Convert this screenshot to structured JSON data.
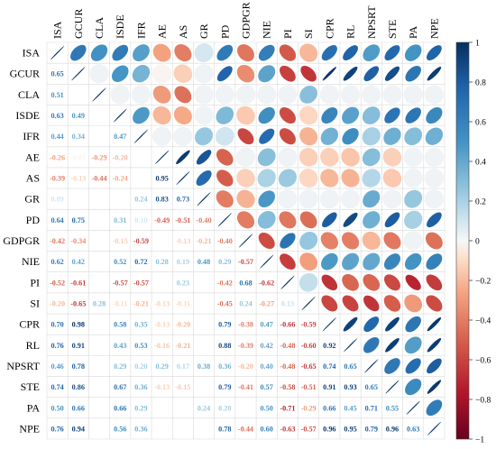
{
  "chart_data": {
    "type": "heatmap",
    "title": "",
    "variables": [
      "ISA",
      "GCUR",
      "CLA",
      "ISDE",
      "IFR",
      "AE",
      "AS",
      "GR",
      "PD",
      "GDPGR",
      "NIE",
      "PI",
      "SI",
      "CPR",
      "RL",
      "NPSRT",
      "STE",
      "PA",
      "NPE"
    ],
    "lower_values": [
      [],
      [
        0.65
      ],
      [
        0.51,
        0.02
      ],
      [
        0.63,
        0.49,
        0.02
      ],
      [
        0.44,
        0.34,
        0.02,
        0.47
      ],
      [
        -0.26,
        -0.01,
        -0.29,
        -0.2,
        0.02
      ],
      [
        -0.39,
        -0.13,
        -0.44,
        -0.24,
        0.02,
        0.95
      ],
      [
        0.09,
        0.02,
        0.02,
        0.02,
        0.24,
        0.83,
        0.73
      ],
      [
        0.64,
        0.75,
        0.02,
        0.31,
        0.1,
        -0.49,
        -0.51,
        -0.4
      ],
      [
        -0.42,
        -0.34,
        0.02,
        -0.15,
        -0.59,
        0.02,
        -0.13,
        -0.21,
        -0.4
      ],
      [
        0.62,
        0.42,
        0.02,
        0.52,
        0.72,
        0.28,
        0.19,
        0.48,
        0.29,
        -0.57
      ],
      [
        -0.52,
        -0.61,
        0.02,
        -0.57,
        -0.57,
        0.02,
        0.23,
        0.02,
        -0.42,
        0.68,
        -0.62
      ],
      [
        -0.2,
        -0.65,
        0.28,
        -0.11,
        -0.21,
        -0.13,
        -0.11,
        0.02,
        -0.45,
        0.24,
        -0.27,
        0.13
      ],
      [
        0.7,
        0.98,
        0.02,
        0.58,
        0.35,
        -0.13,
        -0.2,
        0.02,
        0.79,
        -0.38,
        0.47,
        -0.66,
        -0.59
      ],
      [
        0.76,
        0.91,
        0.02,
        0.43,
        0.53,
        -0.16,
        -0.21,
        0.02,
        0.88,
        -0.39,
        0.42,
        -0.48,
        -0.6,
        0.92
      ],
      [
        0.46,
        0.78,
        0.02,
        0.29,
        0.2,
        0.29,
        0.17,
        0.38,
        0.36,
        -0.2,
        0.4,
        -0.48,
        -0.65,
        0.74,
        0.65
      ],
      [
        0.74,
        0.86,
        0.02,
        0.67,
        0.36,
        -0.13,
        -0.15,
        0.02,
        0.79,
        -0.41,
        0.57,
        -0.58,
        -0.51,
        0.91,
        0.93,
        0.65
      ],
      [
        0.5,
        0.66,
        0.02,
        0.66,
        0.29,
        0.02,
        0.02,
        0.24,
        0.2,
        0.02,
        0.5,
        -0.71,
        -0.29,
        0.66,
        0.45,
        0.71,
        0.55
      ],
      [
        0.76,
        0.94,
        0.02,
        0.56,
        0.36,
        0.02,
        0.02,
        0.02,
        0.78,
        -0.44,
        0.6,
        -0.63,
        -0.57,
        0.96,
        0.95,
        0.79,
        0.96,
        0.63
      ]
    ],
    "visible_lower_labels": [
      [],
      [
        "0.65"
      ],
      [
        "0.51",
        "",
        "",
        "",
        "",
        "",
        "",
        "",
        "",
        "",
        "",
        "",
        "",
        "",
        "",
        "",
        "",
        "",
        ""
      ],
      [
        "0.63",
        "0.49"
      ],
      [
        "0.44",
        "0.34",
        "",
        "0.47"
      ],
      [
        "-0.26",
        "-0.01",
        "-0.29",
        "-0.20"
      ],
      [
        "-0.39",
        "-0.13",
        "-0.44",
        "-0.24",
        "",
        "0.95"
      ],
      [
        "0.09",
        "",
        "",
        "",
        "0.24",
        "0.83",
        "0.73"
      ],
      [
        "0.64",
        "0.75",
        "",
        "0.31",
        "0.10",
        "-0.49",
        "-0.51",
        "-0.40"
      ],
      [
        "-0.42",
        "-0.34",
        "",
        "-0.15",
        "-0.59",
        "",
        "-0.13",
        "-0.21",
        "-0.40"
      ],
      [
        "0.62",
        "0.42",
        "",
        "0.52",
        "0.72",
        "0.28",
        "0.19",
        "0.48",
        "0.29",
        "-0.57"
      ],
      [
        "-0.52",
        "-0.61",
        "",
        "-0.57",
        "-0.57",
        "",
        "0.23",
        "",
        "-0.42",
        "0.68",
        "-0.62"
      ],
      [
        "-0.20",
        "-0.65",
        "0.28",
        "-0.11",
        "-0.21",
        "-0.13",
        "-0.11",
        "",
        "-0.45",
        "0.24",
        "-0.27",
        "0.13"
      ],
      [
        "0.70",
        "0.98",
        "",
        "0.58",
        "0.35",
        "-0.13",
        "-0.20",
        "",
        "0.79",
        "-0.38",
        "0.47",
        "-0.66",
        "-0.59"
      ],
      [
        "0.76",
        "0.91",
        "",
        "0.43",
        "0.53",
        "-0.16",
        "-0.21",
        "",
        "0.88",
        "-0.39",
        "0.42",
        "-0.48",
        "-0.60",
        "0.92"
      ],
      [
        "0.46",
        "0.78",
        "",
        "0.29",
        "0.20",
        "0.29",
        "0.17",
        "0.38",
        "0.36",
        "-0.20",
        "0.40",
        "-0.48",
        "-0.65",
        "0.74",
        "0.65"
      ],
      [
        "0.74",
        "0.86",
        "",
        "0.67",
        "0.36",
        "-0.13",
        "-0.15",
        "",
        "0.79",
        "-0.41",
        "0.57",
        "-0.58",
        "-0.51",
        "0.91",
        "0.93",
        "0.65"
      ],
      [
        "0.50",
        "0.66",
        "",
        "0.66",
        "0.29",
        "",
        "",
        "0.24",
        "0.20",
        "",
        "0.50",
        "-0.71",
        "-0.29",
        "0.66",
        "0.45",
        "0.71",
        "0.55"
      ],
      [
        "0.76",
        "0.94",
        "",
        "0.56",
        "0.36",
        "",
        "",
        "",
        "0.78",
        "-0.44",
        "0.60",
        "-0.63",
        "-0.57",
        "0.96",
        "0.95",
        "0.79",
        "0.96",
        "0.63"
      ]
    ],
    "upper_display": "ellipse",
    "lower_display": "number",
    "color_scale": {
      "range": [
        -1,
        1
      ],
      "ticks": [
        1,
        0.8,
        0.6,
        0.4,
        0.2,
        0,
        -0.2,
        -0.4,
        -0.6,
        -0.8,
        -1
      ],
      "tick_labels": [
        "1",
        "0.8",
        "0.6",
        "0.4",
        "0.2",
        "0",
        "−0.2",
        "−0.4",
        "−0.6",
        "−0.8",
        "−1"
      ],
      "neg_color": "#67001F",
      "mid_color": "#F7F7F7",
      "pos_color": "#053061",
      "legend_position": "right"
    },
    "grid": true
  }
}
